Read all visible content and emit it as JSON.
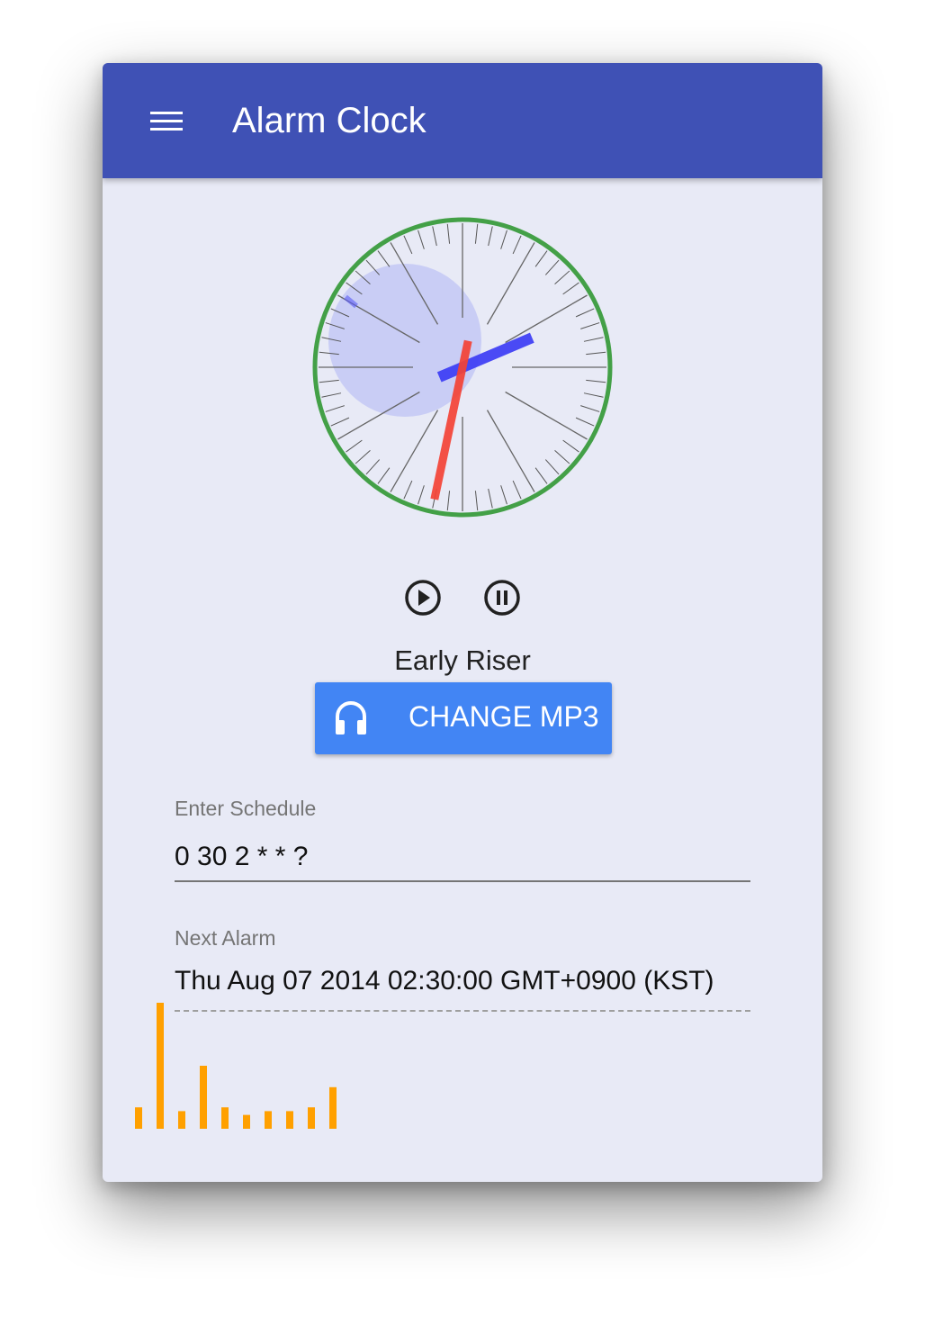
{
  "appbar": {
    "menu_icon": "hamburger-menu-icon",
    "title": "Alarm Clock",
    "color": "#3f51b5"
  },
  "clock": {
    "time": {
      "hour": 2,
      "minute": 14,
      "second": 32
    },
    "colors": {
      "ring": "#43a047",
      "hour_hand": "#3d3df5",
      "second_hand": "#f44336",
      "face_disc": "#c5caf5"
    }
  },
  "controls": {
    "play_icon": "play-circle-icon",
    "pause_icon": "pause-circle-icon"
  },
  "track": {
    "name": "Early Riser"
  },
  "mp3_button": {
    "icon": "headset-icon",
    "label": "CHANGE MP3",
    "color": "#4285f4"
  },
  "schedule": {
    "label": "Enter Schedule",
    "value": "0 30 2 * * ?"
  },
  "next_alarm": {
    "label": "Next Alarm",
    "value": "Thu Aug 07 2014 02:30:00 GMT+0900 (KST)"
  },
  "visualizer": {
    "color": "#ffa000",
    "levels": [
      0.17,
      1.0,
      0.14,
      0.5,
      0.17,
      0.11,
      0.14,
      0.14,
      0.17,
      0.33
    ]
  }
}
